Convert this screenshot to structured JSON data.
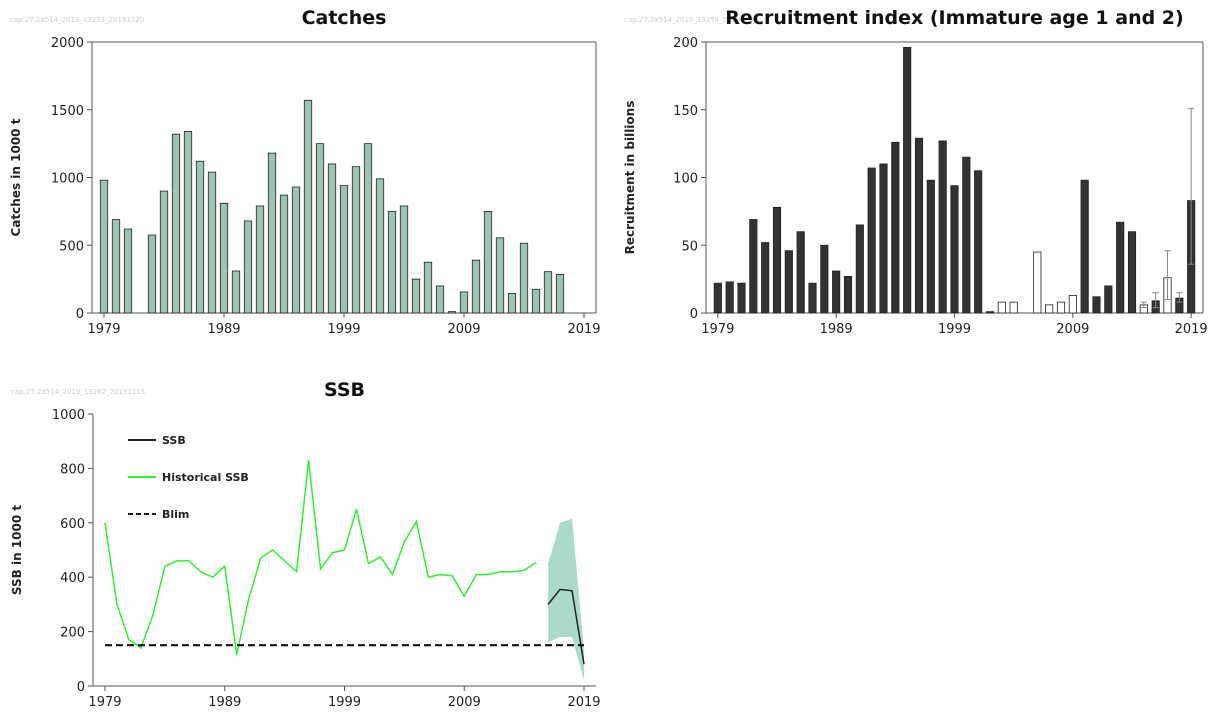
{
  "chart_data": [
    {
      "type": "bar",
      "title": "Catches",
      "watermark": "cap.27.2a514_2019_13253_20191120",
      "y_label": "Catches in 1000 t",
      "x": [
        1979,
        1980,
        1981,
        1982,
        1983,
        1984,
        1985,
        1986,
        1987,
        1988,
        1989,
        1990,
        1991,
        1992,
        1993,
        1994,
        1995,
        1996,
        1997,
        1998,
        1999,
        2000,
        2001,
        2002,
        2003,
        2004,
        2005,
        2006,
        2007,
        2008,
        2009,
        2010,
        2011,
        2012,
        2013,
        2014,
        2015,
        2016,
        2017
      ],
      "values": [
        980,
        690,
        620,
        null,
        575,
        900,
        1320,
        1340,
        1120,
        1040,
        810,
        310,
        680,
        790,
        1180,
        870,
        930,
        1570,
        1250,
        1100,
        940,
        1080,
        1250,
        990,
        750,
        790,
        250,
        375,
        200,
        10,
        155,
        390,
        750,
        555,
        145,
        515,
        175,
        305,
        285
      ],
      "color": "#9dc3b2",
      "xlim": [
        1978,
        2020
      ],
      "xticks": [
        1979,
        1989,
        1999,
        2009,
        2019
      ],
      "ylim": [
        0,
        2000
      ],
      "yticks": [
        0,
        500,
        1000,
        1500,
        2000
      ]
    },
    {
      "type": "bar",
      "title": "Recruitment index (Immature age 1 and 2)",
      "watermark": "cap.27.2a514_2019_13254_20191120",
      "y_label": "Recruitment in billions",
      "x": [
        1979,
        1980,
        1981,
        1982,
        1983,
        1984,
        1985,
        1986,
        1987,
        1988,
        1989,
        1990,
        1991,
        1992,
        1993,
        1994,
        1995,
        1996,
        1997,
        1998,
        1999,
        2000,
        2001,
        2002,
        2003,
        2004,
        2005,
        2006,
        2007,
        2008,
        2009,
        2010,
        2011,
        2012,
        2013,
        2014,
        2015,
        2016,
        2017,
        2018,
        2019
      ],
      "values": [
        22,
        23,
        22,
        69,
        52,
        78,
        46,
        60,
        22,
        50,
        31,
        27,
        65,
        107,
        110,
        126,
        196,
        129,
        98,
        127,
        94,
        115,
        105,
        1,
        8,
        8,
        null,
        45,
        6,
        8,
        13,
        98,
        12,
        20,
        67,
        60,
        6,
        9,
        26,
        11,
        83
      ],
      "colors": [
        "#333333",
        "#333333",
        "#333333",
        "#333333",
        "#333333",
        "#333333",
        "#333333",
        "#333333",
        "#333333",
        "#333333",
        "#333333",
        "#333333",
        "#333333",
        "#333333",
        "#333333",
        "#333333",
        "#333333",
        "#333333",
        "#333333",
        "#333333",
        "#333333",
        "#333333",
        "#333333",
        "#333333",
        "#ffffff",
        "#ffffff",
        "#333333",
        "#ffffff",
        "#ffffff",
        "#ffffff",
        "#ffffff",
        "#333333",
        "#333333",
        "#333333",
        "#333333",
        "#333333",
        "#ffffff",
        "#333333",
        "#ffffff",
        "#333333",
        "#333333"
      ],
      "error_lower": [
        null,
        null,
        null,
        null,
        null,
        null,
        null,
        null,
        null,
        null,
        null,
        null,
        null,
        null,
        null,
        null,
        null,
        null,
        null,
        null,
        null,
        null,
        null,
        null,
        null,
        null,
        null,
        null,
        null,
        null,
        null,
        null,
        null,
        null,
        null,
        null,
        4,
        4,
        10,
        8,
        36
      ],
      "error_upper": [
        null,
        null,
        null,
        null,
        null,
        null,
        null,
        null,
        null,
        null,
        null,
        null,
        null,
        null,
        null,
        null,
        null,
        null,
        null,
        null,
        null,
        null,
        null,
        null,
        null,
        null,
        null,
        null,
        null,
        null,
        null,
        null,
        null,
        null,
        null,
        null,
        8,
        15,
        46,
        15,
        151
      ],
      "xlim": [
        1978,
        2020
      ],
      "xticks": [
        1979,
        1989,
        1999,
        2009,
        2019
      ],
      "ylim": [
        0,
        200
      ],
      "yticks": [
        0,
        50,
        100,
        150,
        200
      ]
    },
    {
      "type": "line",
      "title": "SSB",
      "watermark": "cap.27.2a514_2019_13262_20191115",
      "y_label": "SSB in 1000 t",
      "x": [
        1979,
        1980,
        1981,
        1982,
        1983,
        1984,
        1985,
        1986,
        1987,
        1988,
        1989,
        1990,
        1991,
        1992,
        1993,
        1994,
        1995,
        1996,
        1997,
        1998,
        1999,
        2000,
        2001,
        2002,
        2003,
        2004,
        2005,
        2006,
        2007,
        2008,
        2009,
        2010,
        2011,
        2012,
        2013,
        2014,
        2015,
        2016,
        2017,
        2018,
        2019
      ],
      "series": [
        {
          "name": "SSB",
          "color": "#222222",
          "dashed": false,
          "values": [
            null,
            null,
            null,
            null,
            null,
            null,
            null,
            null,
            null,
            null,
            null,
            null,
            null,
            null,
            null,
            null,
            null,
            null,
            null,
            null,
            null,
            null,
            null,
            null,
            null,
            null,
            null,
            null,
            null,
            null,
            null,
            null,
            null,
            null,
            null,
            null,
            null,
            300,
            355,
            350,
            80
          ]
        },
        {
          "name": "Historical SSB",
          "color": "#33ee33",
          "dashed": false,
          "values": [
            600,
            300,
            170,
            140,
            260,
            440,
            460,
            460,
            420,
            400,
            440,
            115,
            320,
            470,
            500,
            460,
            420,
            830,
            430,
            490,
            500,
            650,
            450,
            475,
            410,
            530,
            605,
            400,
            410,
            405,
            330,
            410,
            410,
            420,
            420,
            425,
            455,
            null,
            null,
            null,
            null
          ]
        },
        {
          "name": "Blim",
          "color": "#111111",
          "dashed": true,
          "values": [
            150,
            150,
            150,
            150,
            150,
            150,
            150,
            150,
            150,
            150,
            150,
            150,
            150,
            150,
            150,
            150,
            150,
            150,
            150,
            150,
            150,
            150,
            150,
            150,
            150,
            150,
            150,
            150,
            150,
            150,
            150,
            150,
            150,
            150,
            150,
            150,
            150,
            150,
            150,
            150,
            150
          ]
        }
      ],
      "band": {
        "color": "#9dd3c0",
        "x": [
          2016,
          2017,
          2018,
          2019
        ],
        "lower": [
          160,
          180,
          180,
          20
        ],
        "upper": [
          450,
          600,
          615,
          130
        ]
      },
      "xlim": [
        1978,
        2020
      ],
      "xticks": [
        1979,
        1989,
        1999,
        2009,
        2019
      ],
      "ylim": [
        0,
        1000
      ],
      "yticks": [
        0,
        200,
        400,
        600,
        800,
        1000
      ]
    }
  ]
}
